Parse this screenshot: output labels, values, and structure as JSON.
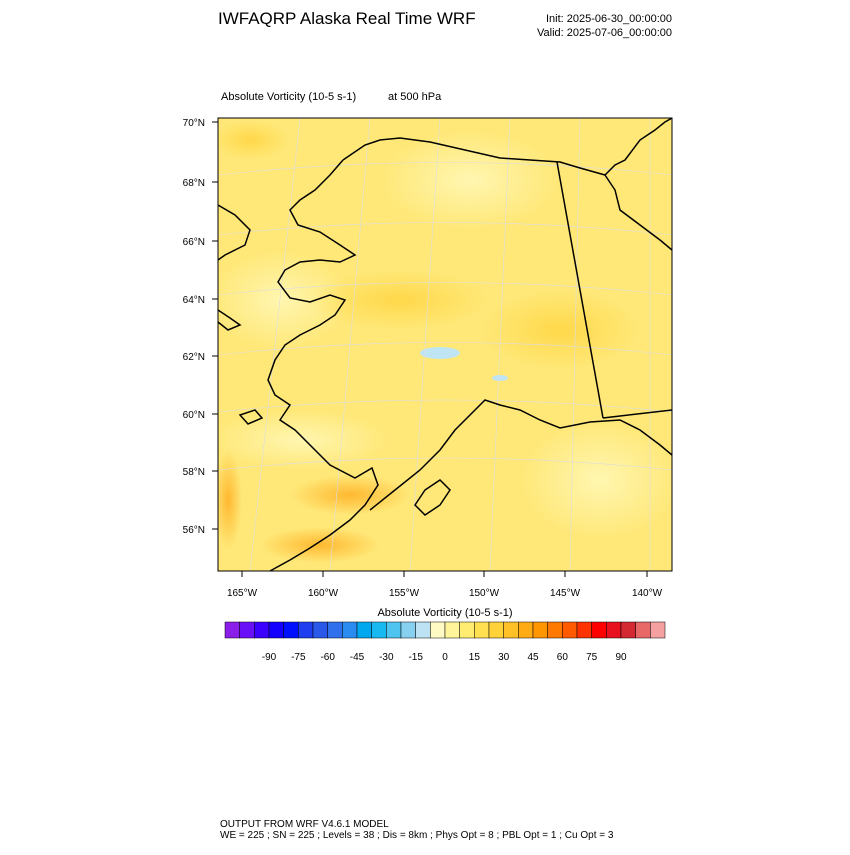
{
  "header": {
    "title": "IWFAQRP Alaska Real Time WRF",
    "init": "Init: 2025-06-30_00:00:00",
    "valid": "Valid: 2025-07-06_00:00:00"
  },
  "map": {
    "subtitle_field": "Absolute Vorticity   (10-5 s-1)",
    "subtitle_level": "at   500 hPa",
    "lat_labels": [
      "70°N",
      "68°N",
      "66°N",
      "64°N",
      "62°N",
      "60°N",
      "58°N",
      "56°N"
    ],
    "lon_labels": [
      "165°W",
      "160°W",
      "155°W",
      "150°W",
      "145°W",
      "140°W"
    ]
  },
  "colorbar": {
    "title": "Absolute Vorticity  (10-5 s-1)",
    "ticks": [
      -90,
      -75,
      -60,
      -45,
      -30,
      -15,
      0,
      15,
      30,
      45,
      60,
      75,
      90
    ],
    "colors": [
      "#8a1ee8",
      "#6a10f8",
      "#3c00ff",
      "#1400ff",
      "#0010ff",
      "#1e3ef0",
      "#2a58e8",
      "#3070ec",
      "#2a8cf0",
      "#00a8f0",
      "#18b8f0",
      "#50c4f0",
      "#88d0f0",
      "#bce2f4",
      "#fffac4",
      "#fff49a",
      "#ffec70",
      "#ffe050",
      "#ffd23a",
      "#ffc028",
      "#ffac14",
      "#ff9600",
      "#ff7800",
      "#ff5a00",
      "#ff3200",
      "#ff0000",
      "#e8101e",
      "#d42832",
      "#e86868",
      "#f4a0a0"
    ]
  },
  "footer": {
    "line1": "OUTPUT FROM WRF V4.6.1 MODEL",
    "line2": "WE = 225 ; SN = 225 ; Levels = 38 ; Dis = 8km ; Phys Opt = 8 ; PBL Opt = 1 ; Cu Opt = 3"
  }
}
